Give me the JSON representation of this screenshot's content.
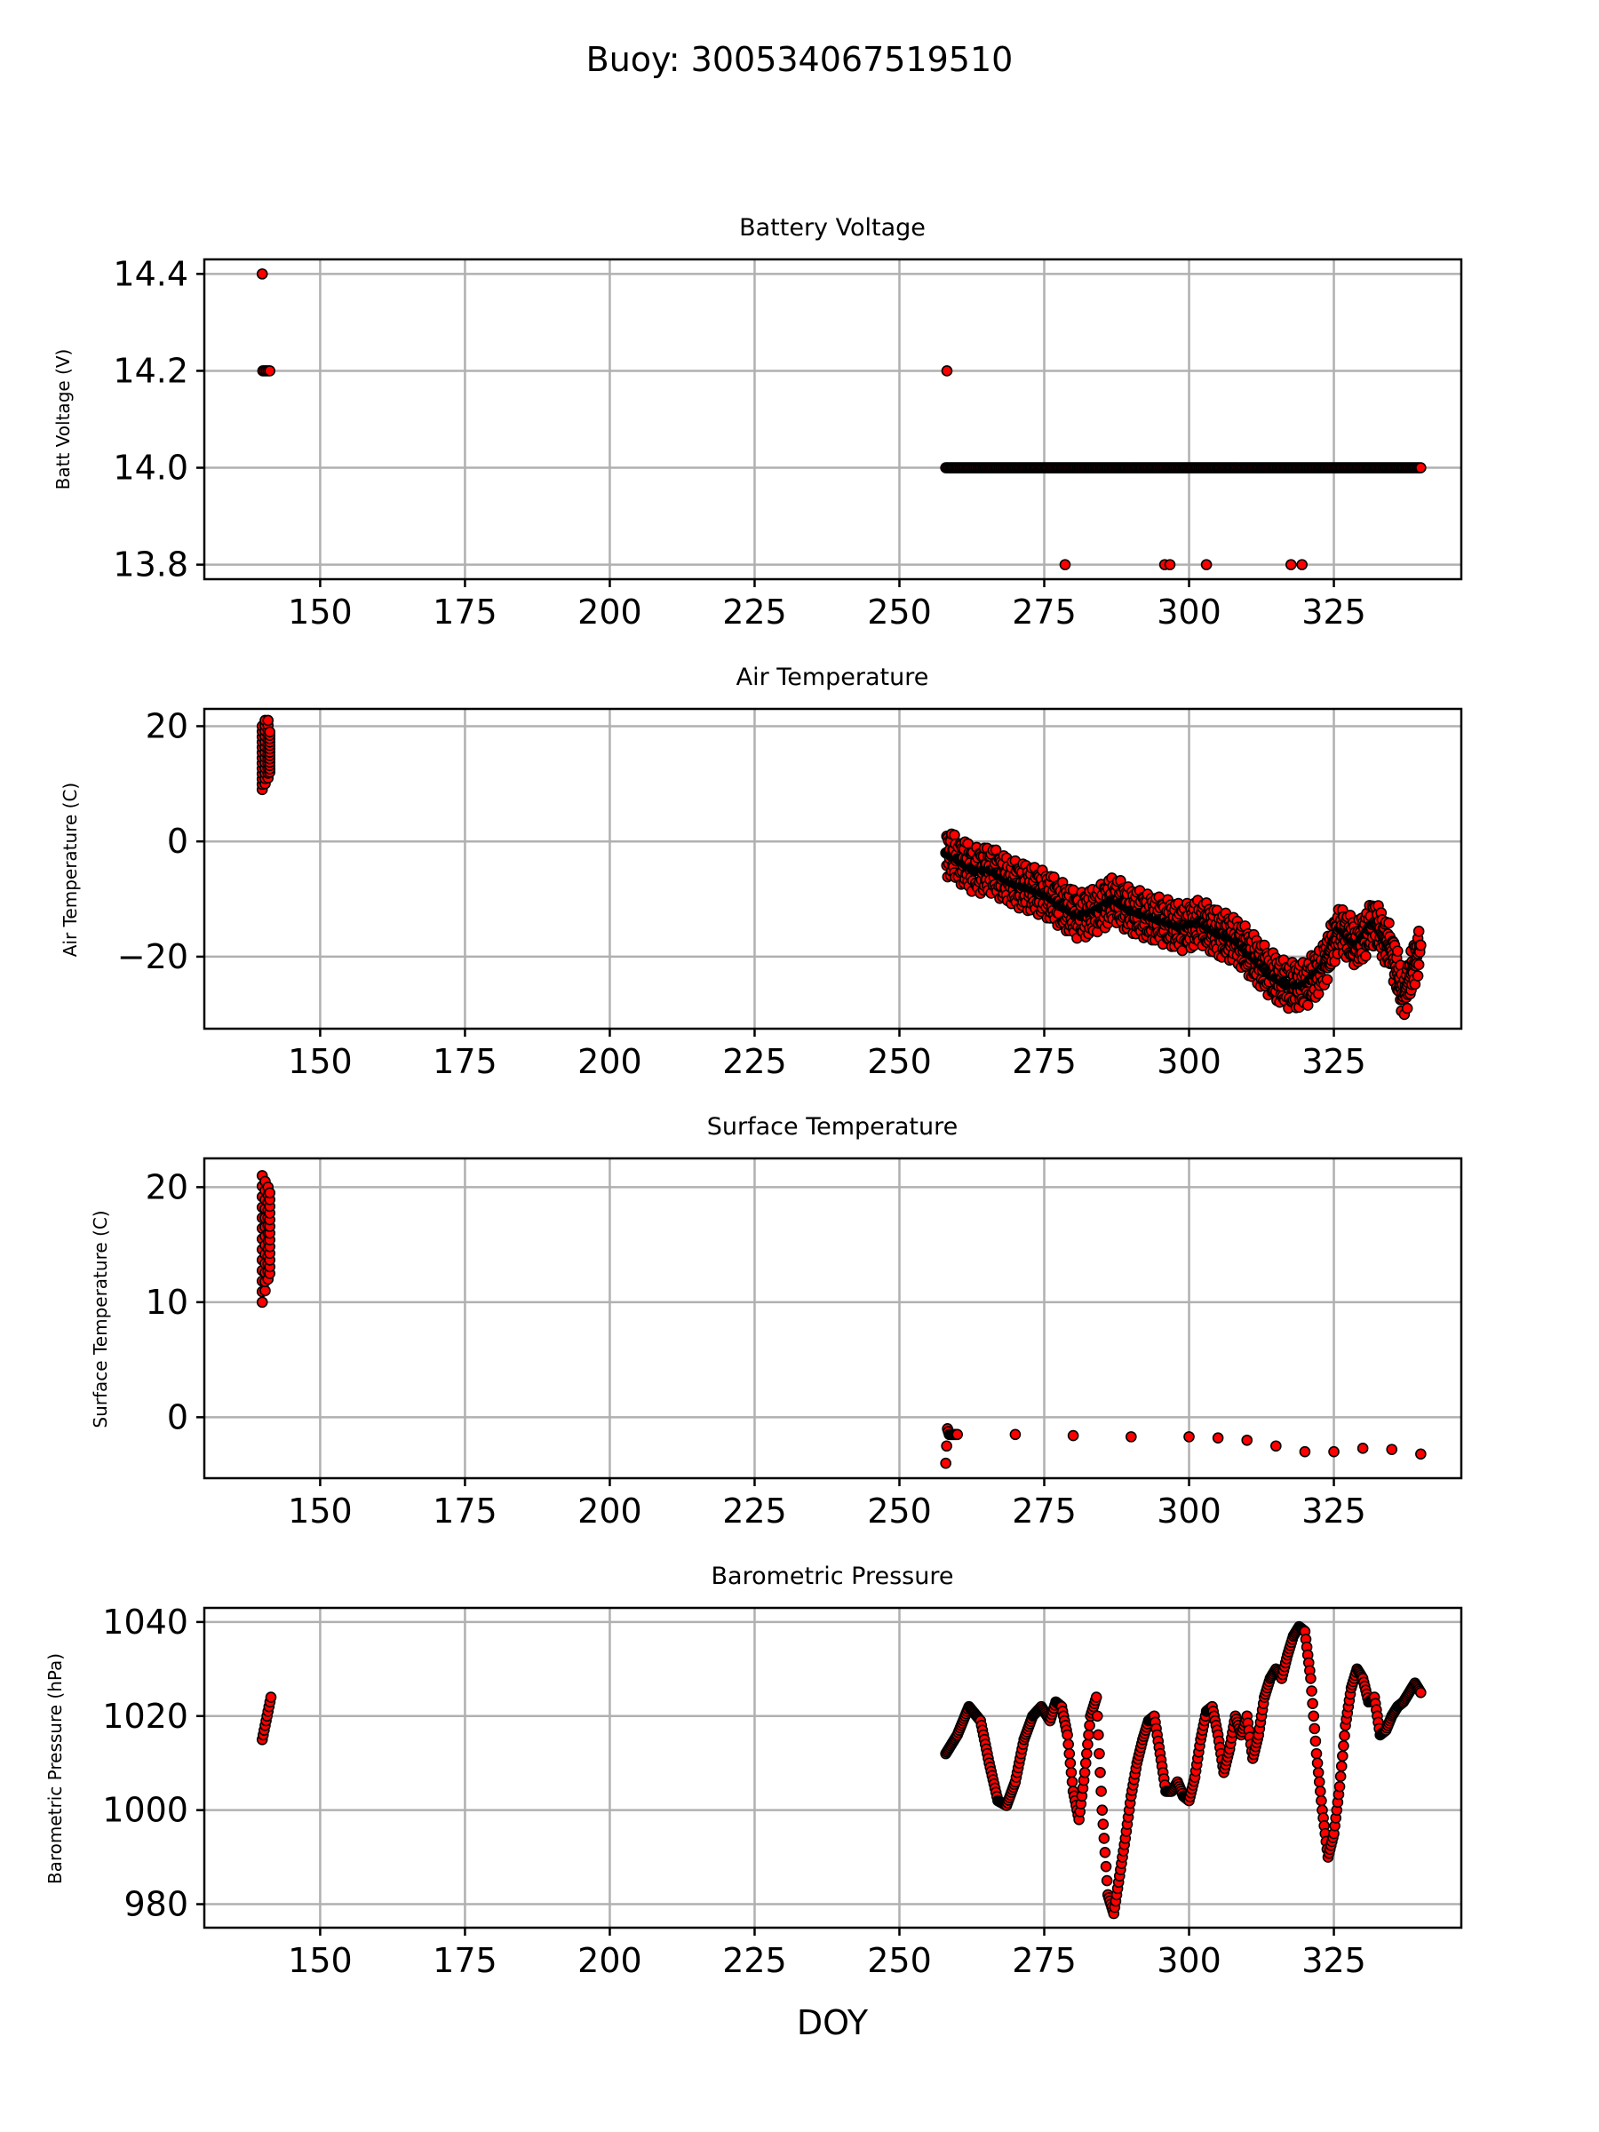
{
  "figure": {
    "suptitle": "Buoy: 300534067519510",
    "xlabel": "DOY",
    "marker_color": "#ff0000",
    "marker_edge": "#000000"
  },
  "chart_data": [
    {
      "type": "scatter",
      "title": "Battery Voltage",
      "ylabel": "Batt Voltage (V)",
      "xlim": [
        130,
        347
      ],
      "ylim": [
        13.77,
        14.43
      ],
      "xticks": [
        150,
        175,
        200,
        225,
        250,
        275,
        300,
        325
      ],
      "yticks": [
        13.8,
        14.0,
        14.2,
        14.4
      ],
      "ytick_labels": [
        "13.8",
        "14.0",
        "14.2",
        "14.4"
      ],
      "x": [
        140,
        140.1,
        140.4,
        140.7,
        141,
        141.3,
        258.2,
        278.6,
        295.8,
        296.7,
        303,
        317.6,
        319.5
      ],
      "y": [
        14.4,
        14.2,
        14.2,
        14.2,
        14.2,
        14.2,
        14.2,
        13.8,
        13.8,
        13.8,
        13.8,
        13.8,
        13.8
      ],
      "segments": [
        {
          "x0": 258,
          "x1": 340,
          "y": 14.0,
          "step": 0.25
        }
      ]
    },
    {
      "type": "scatter",
      "title": "Air Temperature",
      "ylabel": "Air Temperature (C)",
      "xlim": [
        130,
        347
      ],
      "ylim": [
        -32.5,
        23
      ],
      "xticks": [
        150,
        175,
        200,
        225,
        250,
        275,
        300,
        325
      ],
      "yticks": [
        -20,
        0,
        20
      ],
      "ytick_labels": [
        "−20",
        "0",
        "20"
      ],
      "bands": [
        {
          "x": [
            140,
            140.5,
            141,
            141.3
          ],
          "lo": [
            9,
            10,
            11,
            12
          ],
          "hi": [
            20,
            21,
            21,
            19
          ]
        }
      ],
      "x": [
        258,
        260,
        263,
        266,
        269,
        272,
        275,
        278,
        281,
        284,
        287,
        290,
        293,
        296,
        299,
        302,
        305,
        308,
        311,
        314,
        317,
        320,
        323,
        326,
        329,
        332,
        335,
        337,
        340
      ],
      "y": [
        -2,
        -3,
        -5,
        -5,
        -7,
        -8,
        -9,
        -11,
        -13,
        -12,
        -10,
        -12,
        -13,
        -14,
        -15,
        -14,
        -16,
        -17,
        -20,
        -23,
        -25,
        -25,
        -22,
        -15,
        -18,
        -14,
        -19,
        -27,
        -18
      ],
      "y_spread": 4
    },
    {
      "type": "scatter",
      "title": "Surface Temperature",
      "ylabel": "Surface Temperature (C)",
      "xlim": [
        130,
        347
      ],
      "ylim": [
        -5.3,
        22.5
      ],
      "xticks": [
        150,
        175,
        200,
        225,
        250,
        275,
        300,
        325
      ],
      "yticks": [
        0,
        10,
        20
      ],
      "ytick_labels": [
        "0",
        "10",
        "20"
      ],
      "bands": [
        {
          "x": [
            140,
            140.5,
            141,
            141.3
          ],
          "lo": [
            10,
            11,
            12,
            12.5
          ],
          "hi": [
            21,
            20.5,
            20,
            19.5
          ]
        }
      ],
      "x": [
        258,
        258.3,
        258.6,
        260,
        270,
        280,
        290,
        300,
        305,
        310,
        315,
        320,
        325,
        330,
        335,
        340
      ],
      "y": [
        -4,
        -1,
        -1.5,
        -1.5,
        -1.5,
        -1.6,
        -1.7,
        -1.7,
        -1.8,
        -2.0,
        -2.5,
        -3.0,
        -3.0,
        -2.7,
        -2.8,
        -3.2
      ]
    },
    {
      "type": "scatter",
      "title": "Barometric Pressure",
      "ylabel": "Barometric Pressure (hPa)",
      "xlim": [
        130,
        347
      ],
      "ylim": [
        975,
        1043
      ],
      "xticks": [
        150,
        175,
        200,
        225,
        250,
        275,
        300,
        325
      ],
      "yticks": [
        980,
        1000,
        1020,
        1040
      ],
      "ytick_labels": [
        "980",
        "1000",
        "1020",
        "1040"
      ],
      "x": [
        140,
        140.5,
        141,
        141.5,
        258,
        260,
        262,
        264,
        265.5,
        267,
        268.5,
        270,
        271.5,
        273,
        274.5,
        276,
        277,
        278,
        279,
        280,
        281,
        282,
        283,
        284,
        285,
        286,
        287,
        288,
        289,
        290,
        291,
        292,
        293,
        294,
        295,
        296,
        297,
        298,
        299,
        300,
        301,
        302,
        303,
        304,
        305,
        306,
        307,
        308,
        309,
        310,
        311,
        312,
        313,
        314,
        315,
        316,
        317,
        318,
        319,
        320,
        321,
        322,
        323,
        324,
        325,
        326,
        327,
        328,
        329,
        330,
        331,
        332,
        333,
        334,
        335,
        336,
        337,
        338,
        339,
        340
      ],
      "y": [
        1015,
        1018,
        1021,
        1024,
        1012,
        1016,
        1022,
        1019,
        1010,
        1002,
        1001,
        1006,
        1015,
        1020,
        1022,
        1019,
        1023,
        1022,
        1016,
        1004,
        998,
        1008,
        1020,
        1024,
        1000,
        982,
        978,
        986,
        994,
        1003,
        1010,
        1015,
        1019,
        1020,
        1012,
        1004,
        1004,
        1006,
        1003,
        1002,
        1007,
        1015,
        1021,
        1022,
        1016,
        1008,
        1013,
        1020,
        1016,
        1020,
        1011,
        1016,
        1024,
        1028,
        1030,
        1028,
        1033,
        1037,
        1039,
        1038,
        1028,
        1012,
        1000,
        990,
        995,
        1005,
        1018,
        1026,
        1030,
        1028,
        1023,
        1024,
        1016,
        1017,
        1020,
        1022,
        1023,
        1025,
        1027,
        1025
      ]
    }
  ]
}
